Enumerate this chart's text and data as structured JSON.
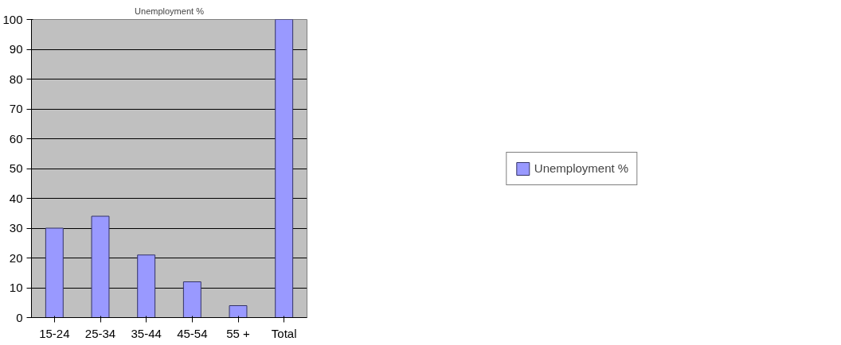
{
  "chart_data": {
    "type": "bar",
    "title": "Unemployment %",
    "categories": [
      "15-24",
      "25-34",
      "35-44",
      "45-54",
      "55 +",
      "Total"
    ],
    "series": [
      {
        "name": "Unemployment %",
        "color": "#9999ff",
        "values": [
          30,
          34,
          21,
          12,
          4,
          100
        ]
      }
    ],
    "ylim": [
      0,
      100
    ],
    "yticks": [
      0,
      10,
      20,
      30,
      40,
      50,
      60,
      70,
      80,
      90,
      100
    ],
    "grid": "y",
    "legend": "right"
  }
}
